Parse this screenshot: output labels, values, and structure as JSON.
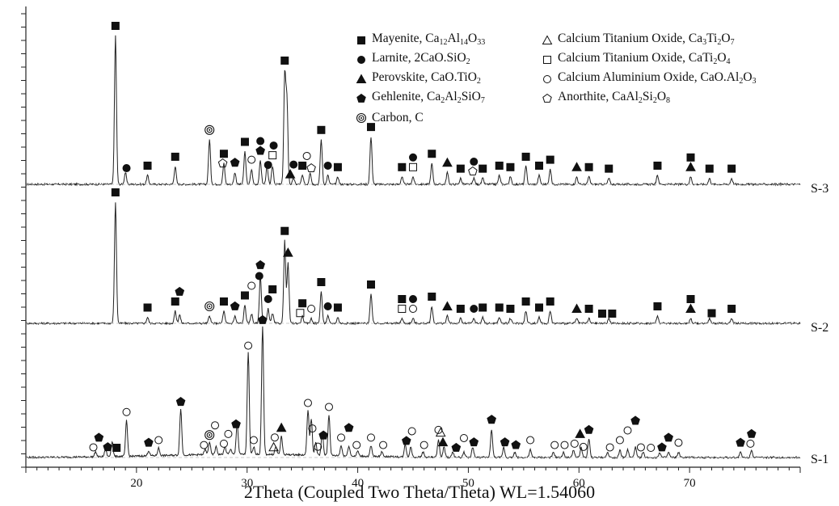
{
  "chart_data": {
    "type": "line",
    "xlabel": "2Theta (Coupled Two Theta/Theta) WL=1.54060",
    "ylabel": "",
    "xlim": [
      10,
      80
    ],
    "xticks": [
      20,
      30,
      40,
      50,
      60,
      70
    ],
    "series": [
      {
        "name": "S-3",
        "peaks": [
          [
            18.1,
            100
          ],
          [
            19.0,
            8
          ],
          [
            21.0,
            6
          ],
          [
            23.5,
            12
          ],
          [
            26.6,
            30
          ],
          [
            27.9,
            14
          ],
          [
            28.9,
            8
          ],
          [
            29.8,
            22
          ],
          [
            30.4,
            10
          ],
          [
            31.2,
            16
          ],
          [
            31.8,
            12
          ],
          [
            32.3,
            12
          ],
          [
            33.4,
            72
          ],
          [
            33.6,
            55
          ],
          [
            34.2,
            4
          ],
          [
            35.0,
            6
          ],
          [
            35.7,
            8
          ],
          [
            36.7,
            30
          ],
          [
            37.3,
            6
          ],
          [
            38.2,
            5
          ],
          [
            41.2,
            32
          ],
          [
            44.0,
            5
          ],
          [
            45.0,
            5
          ],
          [
            46.7,
            14
          ],
          [
            48.1,
            8
          ],
          [
            49.3,
            4
          ],
          [
            50.5,
            4
          ],
          [
            51.3,
            4
          ],
          [
            52.8,
            6
          ],
          [
            53.8,
            5
          ],
          [
            55.2,
            12
          ],
          [
            56.4,
            6
          ],
          [
            57.4,
            10
          ],
          [
            59.8,
            5
          ],
          [
            60.9,
            5
          ],
          [
            62.7,
            4
          ],
          [
            67.1,
            6
          ],
          [
            70.1,
            5
          ],
          [
            71.8,
            4
          ],
          [
            73.8,
            4
          ]
        ]
      },
      {
        "name": "S-2",
        "peaks": [
          [
            18.1,
            100
          ],
          [
            21.0,
            5
          ],
          [
            23.5,
            10
          ],
          [
            23.9,
            7
          ],
          [
            26.6,
            6
          ],
          [
            27.9,
            10
          ],
          [
            28.9,
            6
          ],
          [
            29.8,
            15
          ],
          [
            30.4,
            8
          ],
          [
            31.2,
            40
          ],
          [
            31.9,
            12
          ],
          [
            32.3,
            8
          ],
          [
            33.4,
            68
          ],
          [
            33.7,
            50
          ],
          [
            35.0,
            6
          ],
          [
            35.8,
            4
          ],
          [
            36.7,
            26
          ],
          [
            37.3,
            6
          ],
          [
            38.2,
            5
          ],
          [
            41.2,
            24
          ],
          [
            44.0,
            4
          ],
          [
            45.0,
            4
          ],
          [
            46.7,
            14
          ],
          [
            48.1,
            6
          ],
          [
            49.3,
            4
          ],
          [
            50.5,
            4
          ],
          [
            51.3,
            5
          ],
          [
            52.8,
            5
          ],
          [
            53.8,
            4
          ],
          [
            55.2,
            10
          ],
          [
            56.4,
            5
          ],
          [
            57.4,
            10
          ],
          [
            59.8,
            4
          ],
          [
            60.9,
            4
          ],
          [
            62.7,
            4
          ],
          [
            67.1,
            6
          ],
          [
            70.1,
            4
          ],
          [
            71.8,
            4
          ],
          [
            73.8,
            4
          ]
        ]
      },
      {
        "name": "S-1",
        "peaks": [
          [
            16.3,
            4
          ],
          [
            17.2,
            6
          ],
          [
            17.8,
            12
          ],
          [
            19.1,
            28
          ],
          [
            21.1,
            4
          ],
          [
            22.0,
            6
          ],
          [
            24.0,
            36
          ],
          [
            26.2,
            4
          ],
          [
            26.6,
            10
          ],
          [
            27.2,
            6
          ],
          [
            28.0,
            6
          ],
          [
            28.5,
            4
          ],
          [
            29.1,
            24
          ],
          [
            30.1,
            80
          ],
          [
            30.6,
            6
          ],
          [
            31.4,
            100
          ],
          [
            32.6,
            6
          ],
          [
            33.1,
            14
          ],
          [
            35.5,
            35
          ],
          [
            35.8,
            28
          ],
          [
            36.2,
            10
          ],
          [
            36.8,
            18
          ],
          [
            37.4,
            32
          ],
          [
            38.5,
            8
          ],
          [
            39.2,
            8
          ],
          [
            40.0,
            4
          ],
          [
            41.2,
            8
          ],
          [
            42.2,
            4
          ],
          [
            44.3,
            10
          ],
          [
            44.8,
            8
          ],
          [
            45.9,
            4
          ],
          [
            47.3,
            14
          ],
          [
            47.8,
            8
          ],
          [
            48.6,
            4
          ],
          [
            49.6,
            4
          ],
          [
            50.4,
            8
          ],
          [
            52.1,
            22
          ],
          [
            53.2,
            8
          ],
          [
            54.2,
            4
          ],
          [
            55.6,
            6
          ],
          [
            57.7,
            4
          ],
          [
            58.6,
            4
          ],
          [
            59.5,
            6
          ],
          [
            60.2,
            8
          ],
          [
            60.9,
            14
          ],
          [
            62.6,
            4
          ],
          [
            63.7,
            6
          ],
          [
            64.4,
            6
          ],
          [
            65.1,
            8
          ],
          [
            65.8,
            4
          ],
          [
            67.3,
            4
          ],
          [
            68.1,
            4
          ],
          [
            69.0,
            4
          ],
          [
            74.6,
            4
          ],
          [
            75.6,
            6
          ]
        ]
      }
    ],
    "legend": {
      "placement": "top-right",
      "entries": [
        {
          "symbol": "filled-square",
          "text": "Mayenite, Ca",
          "sub1": "12",
          "mid1": "Al",
          "sub2": "14",
          "mid2": "O",
          "sub3": "33"
        },
        {
          "symbol": "filled-circle",
          "text": "Larnite, 2CaO.SiO",
          "sub1": "2"
        },
        {
          "symbol": "filled-triangle",
          "text": "Perovskite, CaO.TiO",
          "sub1": "2"
        },
        {
          "symbol": "filled-pentagon",
          "text": "Gehlenite, Ca",
          "sub1": "2",
          "mid1": "Al",
          "sub2": "2",
          "mid2": "SiO",
          "sub3": "7"
        },
        {
          "symbol": "spiral",
          "text": "Carbon, C"
        },
        {
          "symbol": "open-triangle",
          "text": "Calcium Titanium Oxide, Ca",
          "sub1": "3",
          "mid1": "Ti",
          "sub2": "2",
          "mid2": "O",
          "sub3": "7"
        },
        {
          "symbol": "open-square",
          "text": "Calcium Titanium Oxide, CaTi",
          "sub1": "2",
          "mid1": "O",
          "sub2": "4"
        },
        {
          "symbol": "open-circle",
          "text": "Calcium Aluminium Oxide, CaO.Al",
          "sub1": "2",
          "mid1": "O",
          "sub2": "3"
        },
        {
          "symbol": "open-pentagon",
          "text": "Anorthite, CaAl",
          "sub1": "2",
          "mid1": "Si",
          "sub2": "2",
          "mid2": "O",
          "sub3": "8"
        }
      ]
    },
    "markers": {
      "S-3": [
        [
          "filled-square",
          18.1
        ],
        [
          "filled-circle",
          19.1
        ],
        [
          "filled-square",
          21.0
        ],
        [
          "filled-square",
          23.5
        ],
        [
          "spiral",
          26.6
        ],
        [
          "open-pentagon",
          27.8
        ],
        [
          "filled-square",
          27.9
        ],
        [
          "filled-pentagon",
          28.9
        ],
        [
          "filled-square",
          29.8
        ],
        [
          "open-circle",
          30.4
        ],
        [
          "filled-pentagon",
          31.2
        ],
        [
          "filled-circle",
          31.2
        ],
        [
          "filled-circle",
          31.9
        ],
        [
          "open-square",
          32.3
        ],
        [
          "filled-circle",
          32.4
        ],
        [
          "filled-square",
          33.4
        ],
        [
          "filled-triangle",
          33.9
        ],
        [
          "filled-circle",
          34.2
        ],
        [
          "filled-square",
          35.0
        ],
        [
          "open-pentagon",
          35.8
        ],
        [
          "open-circle",
          35.4
        ],
        [
          "filled-square",
          36.7
        ],
        [
          "filled-circle",
          37.3
        ],
        [
          "filled-square",
          38.2
        ],
        [
          "filled-square",
          41.2
        ],
        [
          "filled-square",
          44.0
        ],
        [
          "open-square",
          45.0
        ],
        [
          "filled-circle",
          45.0
        ],
        [
          "filled-square",
          46.7
        ],
        [
          "filled-triangle",
          48.1
        ],
        [
          "filled-square",
          49.3
        ],
        [
          "open-pentagon",
          50.4
        ],
        [
          "filled-circle",
          50.5
        ],
        [
          "filled-square",
          51.3
        ],
        [
          "filled-square",
          52.8
        ],
        [
          "filled-square",
          53.8
        ],
        [
          "filled-square",
          55.2
        ],
        [
          "filled-square",
          56.4
        ],
        [
          "filled-square",
          57.4
        ],
        [
          "filled-triangle",
          59.8
        ],
        [
          "filled-square",
          60.9
        ],
        [
          "filled-square",
          62.7
        ],
        [
          "filled-square",
          67.1
        ],
        [
          "filled-triangle",
          70.1
        ],
        [
          "filled-square",
          70.1
        ],
        [
          "filled-square",
          71.8
        ],
        [
          "filled-square",
          73.8
        ]
      ],
      "S-2": [
        [
          "filled-square",
          18.1
        ],
        [
          "filled-square",
          21.0
        ],
        [
          "filled-square",
          23.5
        ],
        [
          "filled-pentagon",
          23.9
        ],
        [
          "spiral",
          26.6
        ],
        [
          "filled-square",
          27.9
        ],
        [
          "filled-pentagon",
          28.9
        ],
        [
          "filled-square",
          29.8
        ],
        [
          "open-circle",
          30.4
        ],
        [
          "filled-circle",
          31.1
        ],
        [
          "filled-pentagon",
          31.2
        ],
        [
          "filled-circle",
          31.9
        ],
        [
          "filled-square",
          32.3
        ],
        [
          "filled-square",
          33.4
        ],
        [
          "filled-triangle",
          33.7
        ],
        [
          "open-square",
          34.8
        ],
        [
          "filled-square",
          35.0
        ],
        [
          "open-circle",
          35.8
        ],
        [
          "filled-square",
          36.7
        ],
        [
          "filled-circle",
          37.3
        ],
        [
          "filled-square",
          38.2
        ],
        [
          "filled-square",
          41.2
        ],
        [
          "open-square",
          44.0
        ],
        [
          "open-circle",
          45.0
        ],
        [
          "filled-square",
          44.0
        ],
        [
          "filled-circle",
          45.0
        ],
        [
          "filled-square",
          46.7
        ],
        [
          "filled-triangle",
          48.1
        ],
        [
          "filled-square",
          49.3
        ],
        [
          "filled-circle",
          50.5
        ],
        [
          "filled-square",
          51.3
        ],
        [
          "filled-square",
          52.8
        ],
        [
          "filled-square",
          53.8
        ],
        [
          "filled-square",
          55.2
        ],
        [
          "filled-square",
          56.4
        ],
        [
          "filled-square",
          57.4
        ],
        [
          "filled-triangle",
          59.8
        ],
        [
          "filled-square",
          60.9
        ],
        [
          "filled-square",
          62.1
        ],
        [
          "filled-square",
          63.0
        ],
        [
          "filled-square",
          67.1
        ],
        [
          "filled-triangle",
          70.1
        ],
        [
          "filled-square",
          70.1
        ],
        [
          "filled-square",
          72.0
        ],
        [
          "filled-square",
          73.8
        ]
      ],
      "S-1": [
        [
          "open-circle",
          16.1
        ],
        [
          "filled-pentagon",
          16.6
        ],
        [
          "filled-pentagon",
          17.4
        ],
        [
          "filled-square",
          18.2
        ],
        [
          "open-circle",
          19.1
        ],
        [
          "filled-pentagon",
          21.1
        ],
        [
          "open-circle",
          22.0
        ],
        [
          "filled-pentagon",
          24.0
        ],
        [
          "open-circle",
          26.1
        ],
        [
          "spiral",
          26.6
        ],
        [
          "open-circle",
          27.1
        ],
        [
          "open-circle",
          27.9
        ],
        [
          "open-circle",
          28.3
        ],
        [
          "filled-pentagon",
          29.0
        ],
        [
          "open-circle",
          30.1
        ],
        [
          "open-circle",
          30.6
        ],
        [
          "filled-pentagon",
          31.4
        ],
        [
          "open-triangle",
          32.4
        ],
        [
          "open-circle",
          32.5
        ],
        [
          "filled-triangle",
          33.1
        ],
        [
          "open-circle",
          35.5
        ],
        [
          "open-circle",
          35.9
        ],
        [
          "open-circle",
          36.4
        ],
        [
          "filled-pentagon",
          36.9
        ],
        [
          "open-circle",
          37.4
        ],
        [
          "open-circle",
          38.5
        ],
        [
          "filled-pentagon",
          39.2
        ],
        [
          "open-circle",
          39.9
        ],
        [
          "open-circle",
          41.2
        ],
        [
          "open-circle",
          42.3
        ],
        [
          "filled-pentagon",
          44.4
        ],
        [
          "open-circle",
          44.9
        ],
        [
          "open-circle",
          46.0
        ],
        [
          "open-circle",
          47.3
        ],
        [
          "filled-triangle",
          47.7
        ],
        [
          "open-triangle",
          47.5
        ],
        [
          "filled-pentagon",
          48.9
        ],
        [
          "open-circle",
          49.6
        ],
        [
          "filled-pentagon",
          50.5
        ],
        [
          "filled-pentagon",
          52.1
        ],
        [
          "filled-pentagon",
          53.3
        ],
        [
          "filled-pentagon",
          54.3
        ],
        [
          "open-circle",
          55.6
        ],
        [
          "open-circle",
          57.8
        ],
        [
          "open-circle",
          58.7
        ],
        [
          "open-circle",
          59.6
        ],
        [
          "filled-triangle",
          60.1
        ],
        [
          "open-circle",
          60.4
        ],
        [
          "filled-pentagon",
          60.9
        ],
        [
          "open-circle",
          62.8
        ],
        [
          "open-circle",
          63.7
        ],
        [
          "open-circle",
          64.4
        ],
        [
          "filled-pentagon",
          65.1
        ],
        [
          "open-circle",
          65.6
        ],
        [
          "open-circle",
          66.5
        ],
        [
          "filled-pentagon",
          67.5
        ],
        [
          "filled-pentagon",
          68.1
        ],
        [
          "open-circle",
          69.0
        ],
        [
          "filled-pentagon",
          74.6
        ],
        [
          "open-circle",
          75.5
        ],
        [
          "filled-pentagon",
          75.6
        ]
      ]
    }
  }
}
